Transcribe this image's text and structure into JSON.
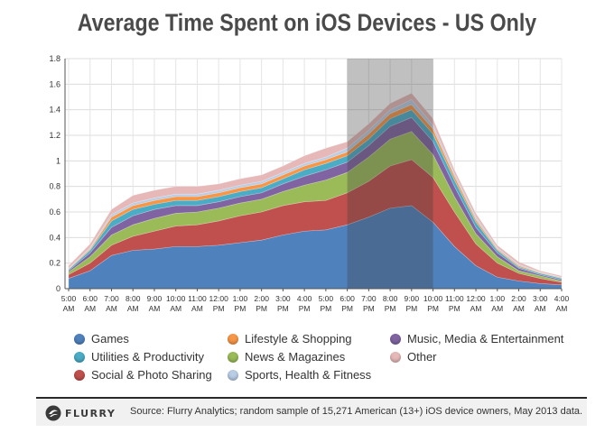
{
  "chart_data": {
    "type": "area",
    "stacked": true,
    "title": "Average Time Spent on iOS Devices - US Only",
    "xlabel": "",
    "ylabel": "",
    "ylim": [
      0,
      1.8
    ],
    "yticks": [
      "0",
      "0.2",
      "0.4",
      "0.6",
      "0.8",
      "1",
      "1.2",
      "1.4",
      "1.6",
      "1.8"
    ],
    "grid": true,
    "legend_position": "bottom",
    "highlight": {
      "from": "6:00 PM",
      "to": "10:00 PM"
    },
    "categories": [
      {
        "top": "5:00",
        "bottom": "AM"
      },
      {
        "top": "6:00",
        "bottom": "AM"
      },
      {
        "top": "7:00",
        "bottom": "AM"
      },
      {
        "top": "8:00",
        "bottom": "AM"
      },
      {
        "top": "9:00",
        "bottom": "AM"
      },
      {
        "top": "10:00",
        "bottom": "AM"
      },
      {
        "top": "11:00",
        "bottom": "AM"
      },
      {
        "top": "12:00",
        "bottom": "PM"
      },
      {
        "top": "1:00",
        "bottom": "PM"
      },
      {
        "top": "2:00",
        "bottom": "PM"
      },
      {
        "top": "3:00",
        "bottom": "PM"
      },
      {
        "top": "4:00",
        "bottom": "PM"
      },
      {
        "top": "5:00",
        "bottom": "PM"
      },
      {
        "top": "6:00",
        "bottom": "PM"
      },
      {
        "top": "7:00",
        "bottom": "PM"
      },
      {
        "top": "8:00",
        "bottom": "PM"
      },
      {
        "top": "9:00",
        "bottom": "PM"
      },
      {
        "top": "10:00",
        "bottom": "PM"
      },
      {
        "top": "11:00",
        "bottom": "PM"
      },
      {
        "top": "12:00",
        "bottom": "AM"
      },
      {
        "top": "1:00",
        "bottom": "AM"
      },
      {
        "top": "2:00",
        "bottom": "AM"
      },
      {
        "top": "3:00",
        "bottom": "AM"
      },
      {
        "top": "4:00",
        "bottom": "AM"
      }
    ],
    "series": [
      {
        "name": "Games",
        "color": "#4f81bd",
        "values": [
          0.08,
          0.14,
          0.26,
          0.3,
          0.31,
          0.33,
          0.33,
          0.34,
          0.36,
          0.38,
          0.42,
          0.45,
          0.46,
          0.5,
          0.56,
          0.63,
          0.65,
          0.52,
          0.33,
          0.18,
          0.09,
          0.06,
          0.04,
          0.03
        ]
      },
      {
        "name": "Social & Photo Sharing",
        "color": "#c0504d",
        "values": [
          0.03,
          0.06,
          0.08,
          0.11,
          0.14,
          0.16,
          0.17,
          0.19,
          0.21,
          0.22,
          0.23,
          0.23,
          0.23,
          0.25,
          0.28,
          0.33,
          0.36,
          0.35,
          0.27,
          0.17,
          0.11,
          0.06,
          0.04,
          0.02
        ]
      },
      {
        "name": "News & Magazines",
        "color": "#9bbb59",
        "values": [
          0.02,
          0.05,
          0.08,
          0.09,
          0.1,
          0.1,
          0.1,
          0.1,
          0.1,
          0.1,
          0.11,
          0.13,
          0.16,
          0.16,
          0.19,
          0.21,
          0.22,
          0.18,
          0.12,
          0.08,
          0.05,
          0.02,
          0.02,
          0.01
        ]
      },
      {
        "name": "Music, Media & Entertainment",
        "color": "#8064a2",
        "values": [
          0.01,
          0.03,
          0.06,
          0.07,
          0.07,
          0.06,
          0.05,
          0.05,
          0.05,
          0.05,
          0.06,
          0.07,
          0.08,
          0.08,
          0.09,
          0.1,
          0.11,
          0.1,
          0.08,
          0.05,
          0.03,
          0.02,
          0.01,
          0.01
        ]
      },
      {
        "name": "Utilities & Productivity",
        "color": "#4bacc6",
        "values": [
          0.01,
          0.02,
          0.05,
          0.05,
          0.04,
          0.04,
          0.04,
          0.04,
          0.04,
          0.04,
          0.04,
          0.05,
          0.05,
          0.05,
          0.05,
          0.06,
          0.06,
          0.06,
          0.05,
          0.04,
          0.02,
          0.01,
          0.01,
          0.01
        ]
      },
      {
        "name": "Lifestyle & Shopping",
        "color": "#f79646",
        "values": [
          0.005,
          0.01,
          0.03,
          0.03,
          0.03,
          0.03,
          0.03,
          0.03,
          0.03,
          0.03,
          0.03,
          0.03,
          0.03,
          0.03,
          0.04,
          0.04,
          0.04,
          0.04,
          0.03,
          0.02,
          0.01,
          0.01,
          0.005,
          0.005
        ]
      },
      {
        "name": "Sports, Health & Fitness",
        "color": "#b9cde5",
        "values": [
          0.005,
          0.01,
          0.02,
          0.02,
          0.02,
          0.02,
          0.02,
          0.02,
          0.02,
          0.02,
          0.02,
          0.02,
          0.02,
          0.03,
          0.03,
          0.03,
          0.04,
          0.03,
          0.02,
          0.02,
          0.01,
          0.01,
          0.005,
          0.005
        ]
      },
      {
        "name": "Other",
        "color": "#e6b9b8",
        "values": [
          0.02,
          0.03,
          0.04,
          0.06,
          0.06,
          0.06,
          0.06,
          0.05,
          0.05,
          0.05,
          0.05,
          0.06,
          0.07,
          0.05,
          0.05,
          0.05,
          0.05,
          0.05,
          0.03,
          0.03,
          0.02,
          0.02,
          0.01,
          0.01
        ]
      }
    ]
  },
  "legend": [
    {
      "label": "Games",
      "color": "#4f81bd"
    },
    {
      "label": "Lifestyle & Shopping",
      "color": "#f79646"
    },
    {
      "label": "Music, Media & Entertainment",
      "color": "#8064a2"
    },
    {
      "label": "Utilities & Productivity",
      "color": "#4bacc6"
    },
    {
      "label": "News & Magazines",
      "color": "#9bbb59"
    },
    {
      "label": "Other",
      "color": "#e6b9b8"
    },
    {
      "label": "Social & Photo Sharing",
      "color": "#c0504d"
    },
    {
      "label": "Sports, Health & Fitness",
      "color": "#b9cde5"
    }
  ],
  "footer": {
    "logo_text": "FLURRY",
    "source": "Source: Flurry Analytics; random sample of 15,271 American (13+) iOS device owners, May 2013 data."
  }
}
